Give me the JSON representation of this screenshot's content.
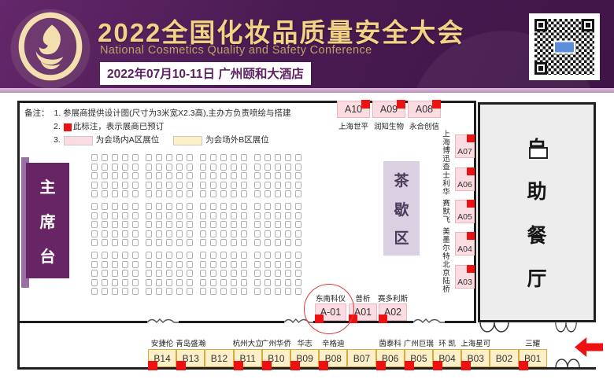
{
  "header": {
    "title": "2022全国化妆品质量安全大会",
    "subtitle": "National Cosmetics Quality and Safety Conference",
    "date_venue": "2022年07月10-11日  广州颐和大酒店"
  },
  "notes": {
    "label": "备注：",
    "line1": "1. 参展商提供设计图(尺寸为3米宽X2.3高),主办方负责喷绘与搭建",
    "line2_prefix": "2.",
    "line2_text": "此标注，表示展商已预订",
    "line3_prefix": "3.",
    "line3_a": "为会场内A区展位",
    "line3_b": "为会场外B区展位"
  },
  "plan": {
    "stage_label": "主席台",
    "tea_label": "茶歇区",
    "buffet_label": "自助餐厅",
    "top_booths": [
      {
        "id": "A10",
        "company": "上海世平",
        "reserved": true
      },
      {
        "id": "A09",
        "company": "润知生物",
        "reserved": true
      },
      {
        "id": "A08",
        "company": "永合创信",
        "reserved": true
      }
    ],
    "right_booths": [
      {
        "id": "A07",
        "company": "上海博迅",
        "reserved": true
      },
      {
        "id": "A06",
        "company": "查士利华",
        "reserved": true
      },
      {
        "id": "A05",
        "company": "赛默飞",
        "reserved": true
      },
      {
        "id": "A04",
        "company": "美墨尔特",
        "reserved": true
      },
      {
        "id": "A03",
        "company": "北京陆桥",
        "reserved": true
      }
    ],
    "front_booths": [
      {
        "id": "A-01",
        "company": "东南科仪",
        "reserved": true,
        "circled": true
      },
      {
        "id": "A01",
        "company": "普析",
        "reserved": true,
        "circled": false
      },
      {
        "id": "A02",
        "company": "赛多利斯",
        "reserved": true,
        "circled": false
      }
    ],
    "b_booths": [
      {
        "id": "B14",
        "company": "安捷伦",
        "reserved": true
      },
      {
        "id": "B13",
        "company": "青岛盛瀚",
        "reserved": true
      },
      {
        "id": "B12",
        "company": "",
        "reserved": false
      },
      {
        "id": "B11",
        "company": "杭州大立",
        "reserved": true
      },
      {
        "id": "B10",
        "company": "广州华侨",
        "reserved": true
      },
      {
        "id": "B09",
        "company": "华志",
        "reserved": true
      },
      {
        "id": "B08",
        "company": "辛格迪",
        "reserved": true
      },
      {
        "id": "B07",
        "company": "",
        "reserved": false
      },
      {
        "id": "B06",
        "company": "茵泰科",
        "reserved": true
      },
      {
        "id": "B05",
        "company": "广州巨瑞",
        "reserved": true
      },
      {
        "id": "B04",
        "company": "环 凯",
        "reserved": true
      },
      {
        "id": "B03",
        "company": "上海星可",
        "reserved": true
      },
      {
        "id": "B02",
        "company": "",
        "reserved": false
      },
      {
        "id": "B01",
        "company": "三耀",
        "reserved": true
      }
    ]
  },
  "seating": {
    "block_rows": 3,
    "block_cols": 4,
    "rows_per_block": 5,
    "cols_per_block": 5,
    "total_seats": 300
  },
  "colors": {
    "title_gold": "#f2d386",
    "subtitle_gold": "#bfa066",
    "date_text": "#5c2161",
    "booth_pink": "#fbdce0",
    "booth_pink_border": "#f0b4bd",
    "booth_yellow": "#fdf0c8",
    "booth_yellow_border": "#d8a940",
    "reserved_red": "#ee1111",
    "stage_purple": "#682566",
    "stage_bar": "#9a6fa5",
    "tea_bg": "#dbd0e2",
    "tea_text": "#4a3a5c",
    "buffet_bg": "#ededed",
    "wall": "#1f1f1f",
    "arrow_red": "#ee1111",
    "circle_red": "#e23b3b"
  }
}
